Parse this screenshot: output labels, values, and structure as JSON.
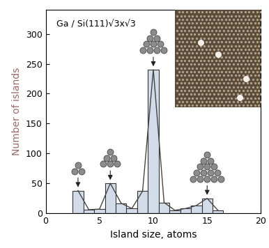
{
  "chart_data": {
    "type": "bar",
    "title": "Ga / Si(111)√3x√3",
    "x_label": "Island size, atoms",
    "y_label": "Number of islands",
    "x": [
      3,
      4,
      5,
      6,
      7,
      8,
      9,
      10,
      11,
      12,
      13,
      14,
      15,
      16
    ],
    "values": [
      38,
      6,
      7,
      50,
      17,
      8,
      37,
      240,
      18,
      5,
      8,
      13,
      25,
      5
    ],
    "color": "#d2dce8",
    "xlim": [
      0,
      20
    ],
    "xticks": [
      0,
      5,
      10,
      15,
      20
    ],
    "ylim": [
      0,
      340
    ],
    "yticks": [
      0,
      50,
      100,
      150,
      200,
      250,
      300
    ]
  }
}
